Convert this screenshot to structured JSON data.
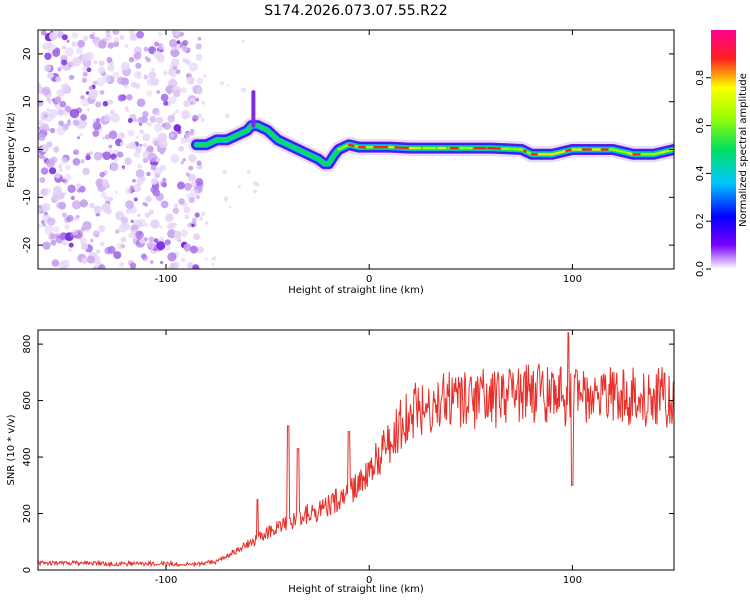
{
  "figure": {
    "title": "S174.2026.073.07.55.R22",
    "colors": {
      "snr_line": "#e8302a",
      "spectrogram_dot": "#8a2be2",
      "frame": "#000000"
    }
  },
  "chart_data": [
    {
      "type": "heatmap",
      "title": "S174.2026.073.07.55.R22",
      "xlabel": "Height of straight line (km)",
      "ylabel": "Frequency (Hz)",
      "xlim": [
        -163,
        150
      ],
      "ylim": [
        -25,
        25
      ],
      "xticks": [
        -100,
        0,
        100
      ],
      "yticks": [
        -20,
        -10,
        0,
        10,
        20
      ],
      "noise_region_x": [
        -163,
        -83
      ],
      "ridge": {
        "x": [
          -85,
          -80,
          -75,
          -70,
          -65,
          -60,
          -58,
          -55,
          -50,
          -45,
          -40,
          -35,
          -30,
          -25,
          -22,
          -20,
          -17,
          -15,
          -10,
          -5,
          0,
          10,
          20,
          40,
          60,
          75,
          80,
          90,
          100,
          110,
          120,
          130,
          140,
          150
        ],
        "y": [
          1,
          1,
          2,
          2,
          3,
          4,
          5,
          5,
          4,
          2,
          1,
          0,
          -1,
          -2,
          -3,
          -3,
          -1,
          0,
          1,
          0.5,
          0.5,
          0.5,
          0.3,
          0.3,
          0.3,
          0,
          -1,
          -1,
          0,
          0,
          0,
          -1,
          -1,
          0
        ]
      },
      "spike": {
        "x": -57,
        "y_range": [
          5,
          12
        ]
      },
      "colorbar": {
        "label": "Normalized spectral amplitude",
        "range": [
          0,
          1
        ],
        "ticks": [
          "0.0",
          "0.2",
          "0.4",
          "0.6",
          "0.8"
        ]
      }
    },
    {
      "type": "line",
      "xlabel": "Height of straight line (km)",
      "ylabel": "SNR (10 * v/v)",
      "xlim": [
        -163,
        150
      ],
      "ylim": [
        0,
        850
      ],
      "xticks": [
        -100,
        0,
        100
      ],
      "yticks": [
        0,
        200,
        400,
        600,
        800
      ],
      "series": [
        {
          "name": "SNR",
          "x": [
            -163,
            -140,
            -120,
            -100,
            -85,
            -75,
            -70,
            -65,
            -60,
            -55,
            -50,
            -45,
            -40,
            -35,
            -30,
            -25,
            -20,
            -15,
            -10,
            -5,
            0,
            5,
            10,
            15,
            20,
            25,
            30,
            40,
            50,
            60,
            70,
            80,
            90,
            100,
            110,
            120,
            130,
            140,
            150
          ],
          "y": [
            25,
            25,
            22,
            22,
            22,
            30,
            50,
            70,
            90,
            110,
            130,
            150,
            170,
            180,
            200,
            210,
            230,
            250,
            280,
            310,
            350,
            400,
            450,
            510,
            550,
            580,
            590,
            600,
            600,
            610,
            610,
            620,
            620,
            610,
            610,
            610,
            610,
            610,
            610
          ]
        }
      ],
      "spikes": [
        {
          "x": -40,
          "y": 510
        },
        {
          "x": -55,
          "y": 250
        },
        {
          "x": -35,
          "y": 430
        },
        {
          "x": -10,
          "y": 490
        },
        {
          "x": 98,
          "y": 840
        },
        {
          "x": 100,
          "y": 300
        }
      ]
    }
  ]
}
